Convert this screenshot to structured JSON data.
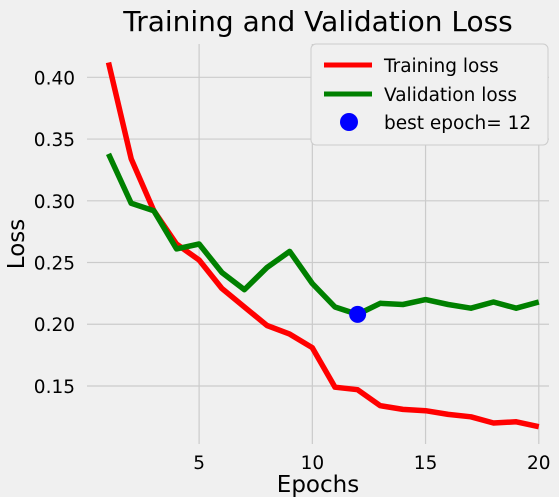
{
  "chart_data": {
    "type": "line",
    "title": "Training and Validation Loss",
    "xlabel": "Epochs",
    "ylabel": "Loss",
    "xlim": [
      0.05,
      20.45
    ],
    "ylim": [
      0.103,
      0.427
    ],
    "x_ticks": [
      5,
      10,
      15,
      20
    ],
    "y_ticks": [
      0.15,
      0.2,
      0.25,
      0.3,
      0.35,
      0.4
    ],
    "grid": true,
    "legend_placement": "upper-right",
    "x": [
      1,
      2,
      3,
      4,
      5,
      6,
      7,
      8,
      9,
      10,
      11,
      12,
      13,
      14,
      15,
      16,
      17,
      18,
      19,
      20
    ],
    "series": [
      {
        "name": "Training loss",
        "color": "#ff0000",
        "values": [
          0.412,
          0.334,
          0.292,
          0.265,
          0.252,
          0.229,
          0.214,
          0.199,
          0.192,
          0.181,
          0.149,
          0.147,
          0.134,
          0.131,
          0.13,
          0.127,
          0.125,
          0.12,
          0.121,
          0.117
        ]
      },
      {
        "name": "Validation loss",
        "color": "#008000",
        "values": [
          0.338,
          0.298,
          0.292,
          0.261,
          0.265,
          0.242,
          0.228,
          0.246,
          0.259,
          0.233,
          0.214,
          0.208,
          0.217,
          0.216,
          0.22,
          0.216,
          0.213,
          0.218,
          0.213,
          0.218
        ]
      }
    ],
    "best_point": {
      "label": "best epoch= 12",
      "x": 12,
      "y": 0.208,
      "color": "#0000ff"
    }
  }
}
